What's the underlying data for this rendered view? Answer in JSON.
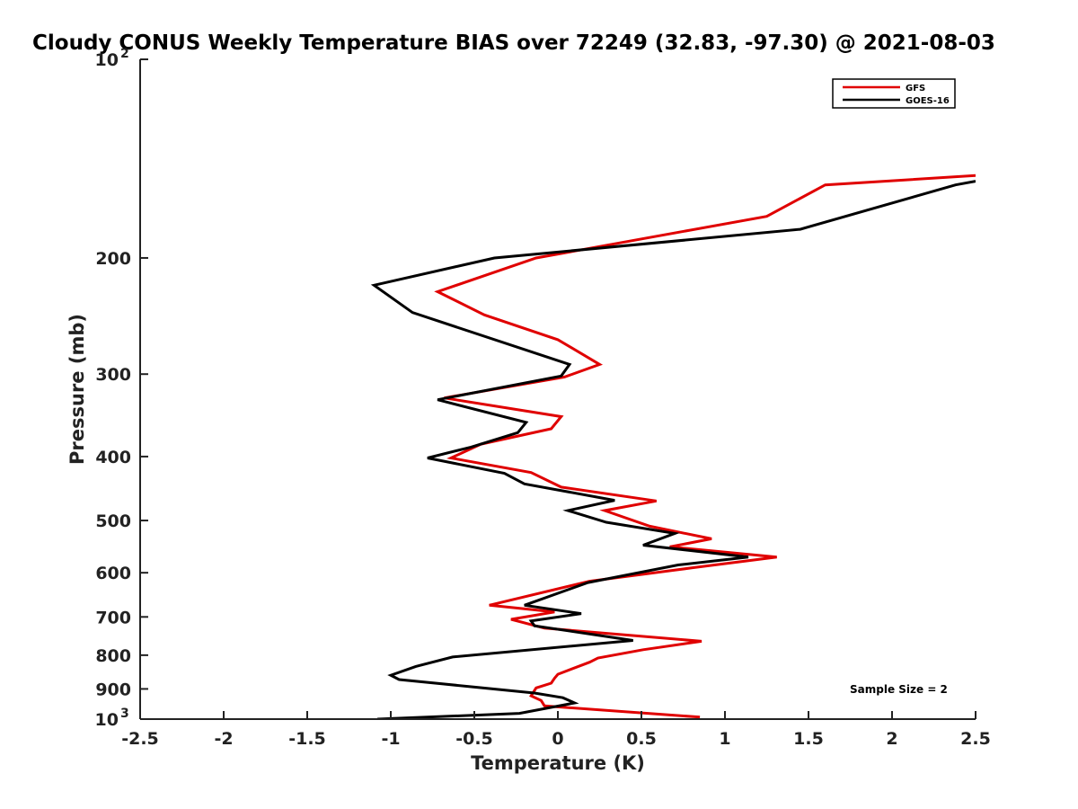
{
  "chart_data": {
    "type": "line",
    "title": "Cloudy CONUS Weekly Temperature BIAS over 72249 (32.83, -97.30) @ 2021-08-03",
    "xlabel": "Temperature (K)",
    "ylabel": "Pressure (mb)",
    "xlim": [
      -2.5,
      2.5
    ],
    "ylim": [
      1000,
      100
    ],
    "yscale": "log",
    "y_reversed": true,
    "grid": false,
    "legend_position": "top-right",
    "x_ticks": [
      -2.5,
      -2,
      -1.5,
      -1,
      -0.5,
      0,
      0.5,
      1,
      1.5,
      2,
      2.5
    ],
    "x_tick_labels": [
      "-2.5",
      "-2",
      "-1.5",
      "-1",
      "-0.5",
      "0",
      "0.5",
      "1",
      "1.5",
      "2",
      "2.5"
    ],
    "y_ticks": [
      {
        "value": 100,
        "label": "10",
        "sup": "2"
      },
      {
        "value": 200,
        "label": "200",
        "sup": ""
      },
      {
        "value": 300,
        "label": "300",
        "sup": ""
      },
      {
        "value": 400,
        "label": "400",
        "sup": ""
      },
      {
        "value": 500,
        "label": "500",
        "sup": ""
      },
      {
        "value": 600,
        "label": "600",
        "sup": ""
      },
      {
        "value": 700,
        "label": "700",
        "sup": ""
      },
      {
        "value": 800,
        "label": "800",
        "sup": ""
      },
      {
        "value": 900,
        "label": "900",
        "sup": ""
      },
      {
        "value": 1000,
        "label": "10",
        "sup": "3"
      }
    ],
    "annotation": "Sample Size = 2",
    "series": [
      {
        "name": "GFS",
        "color": "#e00000",
        "points": [
          [
            2.5,
            150
          ],
          [
            1.6,
            155
          ],
          [
            1.25,
            173
          ],
          [
            -0.13,
            200
          ],
          [
            -0.72,
            225
          ],
          [
            -0.44,
            244
          ],
          [
            0.0,
            266
          ],
          [
            0.25,
            290
          ],
          [
            0.04,
            303
          ],
          [
            -0.68,
            326
          ],
          [
            0.02,
            348
          ],
          [
            -0.04,
            363
          ],
          [
            -0.46,
            383
          ],
          [
            -0.64,
            402
          ],
          [
            -0.16,
            423
          ],
          [
            0.02,
            445
          ],
          [
            0.59,
            467
          ],
          [
            0.28,
            483
          ],
          [
            0.55,
            510
          ],
          [
            0.92,
            533
          ],
          [
            0.67,
            548
          ],
          [
            1.31,
            568
          ],
          [
            0.8,
            590
          ],
          [
            0.19,
            618
          ],
          [
            -0.41,
            672
          ],
          [
            -0.02,
            688
          ],
          [
            -0.28,
            706
          ],
          [
            -0.08,
            728
          ],
          [
            0.86,
            762
          ],
          [
            0.51,
            785
          ],
          [
            0.24,
            808
          ],
          [
            0.19,
            820
          ],
          [
            0.0,
            855
          ],
          [
            -0.02,
            867
          ],
          [
            -0.04,
            882
          ],
          [
            -0.13,
            897
          ],
          [
            -0.16,
            922
          ],
          [
            -0.1,
            937
          ],
          [
            -0.08,
            955
          ],
          [
            0.85,
            993
          ]
        ]
      },
      {
        "name": "GOES-16",
        "color": "#000000",
        "points": [
          [
            2.5,
            153
          ],
          [
            2.38,
            155
          ],
          [
            1.45,
            181
          ],
          [
            -0.38,
            200
          ],
          [
            -1.1,
            220
          ],
          [
            -0.87,
            242
          ],
          [
            0.07,
            290
          ],
          [
            0.02,
            302
          ],
          [
            -0.72,
            328
          ],
          [
            -0.19,
            355
          ],
          [
            -0.24,
            368
          ],
          [
            -0.52,
            387
          ],
          [
            -0.78,
            402
          ],
          [
            -0.32,
            424
          ],
          [
            -0.2,
            440
          ],
          [
            0.34,
            466
          ],
          [
            0.06,
            483
          ],
          [
            0.29,
            503
          ],
          [
            0.7,
            523
          ],
          [
            0.51,
            545
          ],
          [
            1.14,
            568
          ],
          [
            0.72,
            584
          ],
          [
            0.18,
            621
          ],
          [
            -0.2,
            672
          ],
          [
            0.14,
            692
          ],
          [
            -0.16,
            710
          ],
          [
            -0.14,
            722
          ],
          [
            0.45,
            760
          ],
          [
            -0.63,
            805
          ],
          [
            -0.85,
            832
          ],
          [
            -1.0,
            858
          ],
          [
            -0.95,
            871
          ],
          [
            -0.14,
            913
          ],
          [
            0.03,
            928
          ],
          [
            0.1,
            945
          ],
          [
            -0.23,
            980
          ],
          [
            -1.08,
            1000
          ]
        ]
      }
    ]
  }
}
